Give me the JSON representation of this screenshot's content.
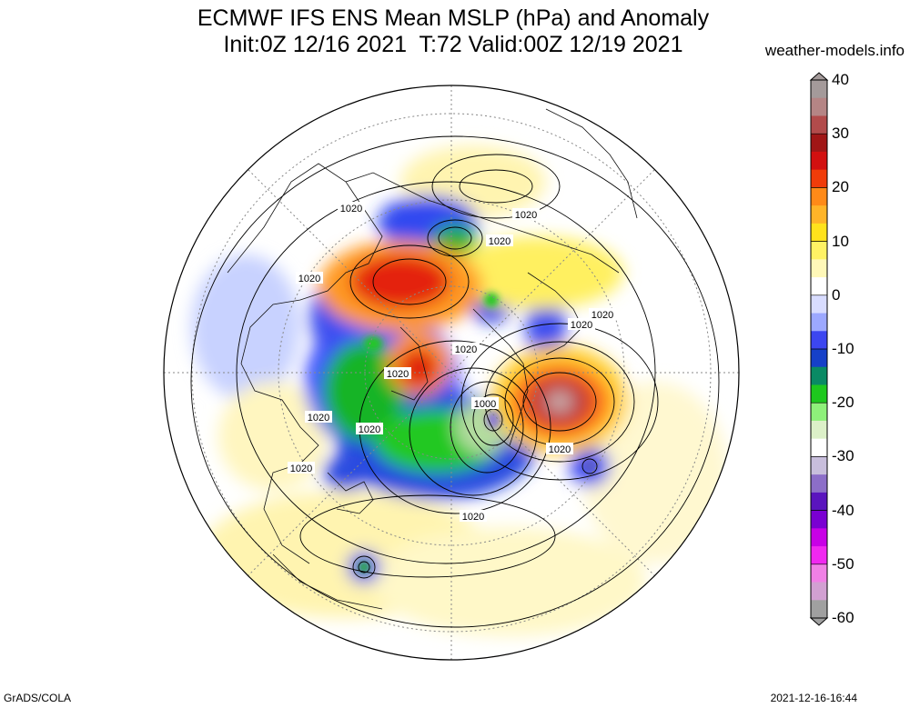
{
  "header": {
    "title_line1": "ECMWF IFS ENS Mean MSLP (hPa) and Anomaly",
    "title_line2": "Init:0Z 12/16 2021  T:72 Valid:00Z 12/19 2021",
    "site": "weather-models.info"
  },
  "footer": {
    "software": "GrADS/COLA",
    "timestamp": "2021-12-16-16:44"
  },
  "colorbar": {
    "ticks": [
      "40",
      "30",
      "20",
      "10",
      "0",
      "-10",
      "-20",
      "-30",
      "-40",
      "-50",
      "-60"
    ],
    "colors_top_to_bottom": [
      "#a49a9a",
      "#b58585",
      "#b24b4b",
      "#a01616",
      "#d21010",
      "#f03c0a",
      "#ff8a18",
      "#ffb428",
      "#ffe21c",
      "#fff264",
      "#fff8b8",
      "#ffffff",
      "#d8dcff",
      "#9ca8ff",
      "#3c46f0",
      "#1640c8",
      "#0a8a64",
      "#1ec81e",
      "#8ef07a",
      "#dcf0c8",
      "#ffffff",
      "#c8bedc",
      "#8c6ec8",
      "#5a14be",
      "#7a00d2",
      "#c800e6",
      "#f028f0",
      "#f080e6",
      "#d2a0d2",
      "#a0a0a0"
    ]
  },
  "map": {
    "isobar_labels": [
      "1020",
      "1020",
      "1020",
      "1020",
      "1020",
      "1020",
      "1020",
      "1020",
      "1020",
      "1020",
      "1020",
      "1020",
      "1020",
      "1020",
      "1000",
      "1020"
    ]
  }
}
